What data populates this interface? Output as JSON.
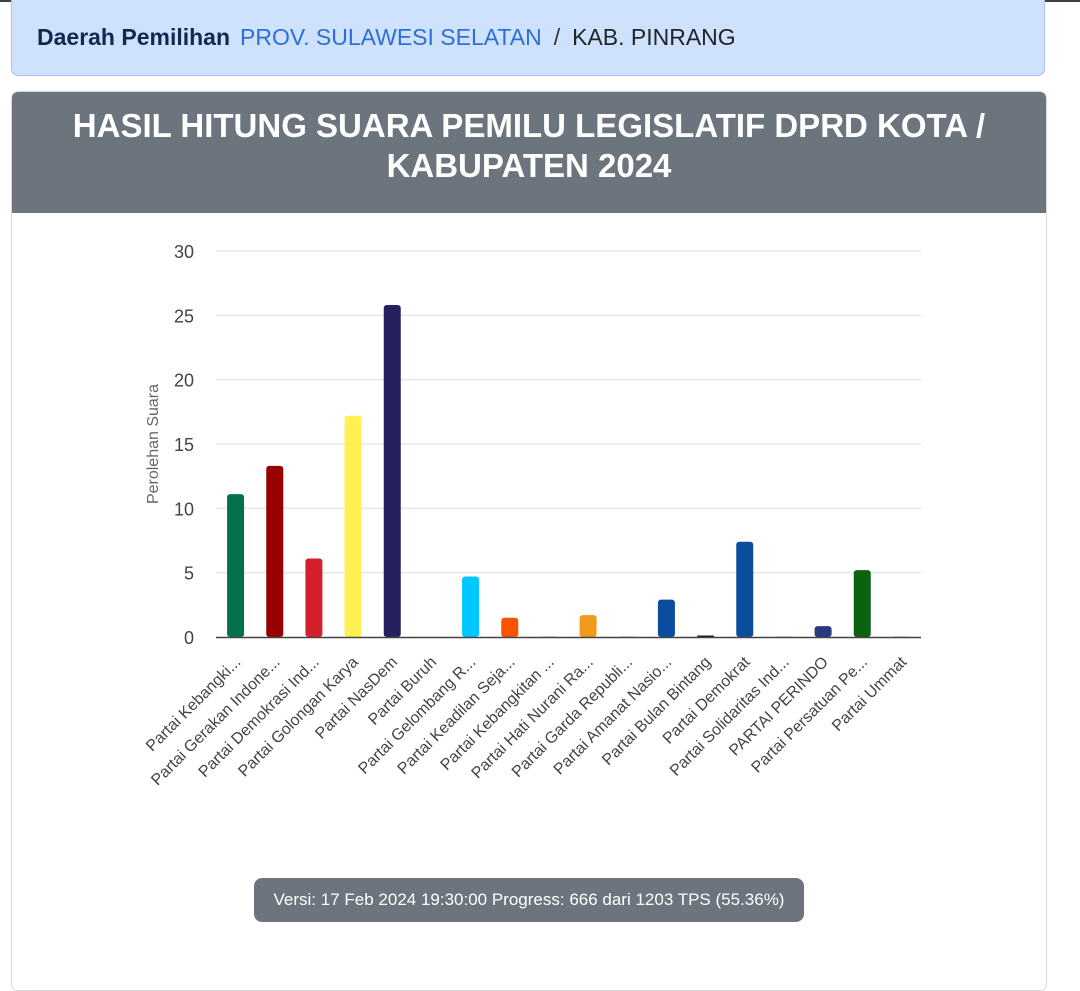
{
  "breadcrumb": {
    "label": "Daerah Pemilihan",
    "province": "PROV. SULAWESI SELATAN",
    "separator": "/",
    "current": "KAB. PINRANG"
  },
  "card": {
    "title_line1": "HASIL HITUNG SUARA PEMILU LEGISLATIF DPRD KOTA /",
    "title_line2": "KABUPATEN 2024"
  },
  "status": {
    "version_text": "Versi: 17 Feb 2024 19:30:00 Progress: 666 dari 1203 TPS (55.36%)"
  },
  "chart_data": {
    "type": "bar",
    "title": "HASIL HITUNG SUARA PEMILU LEGISLATIF DPRD KOTA / KABUPATEN 2024",
    "xlabel": "",
    "ylabel": "Perolehan Suara",
    "ylim": [
      0,
      30
    ],
    "yticks": [
      0,
      5,
      10,
      15,
      20,
      25,
      30
    ],
    "grid": true,
    "legend": "none",
    "categories": [
      "Partai Kebangki...",
      "Partai Gerakan Indone...",
      "Partai Demokrasi Ind...",
      "Partai Golongan Karya",
      "Partai NasDem",
      "Partai Buruh",
      "Partai Gelombang R...",
      "Partai Keadilan Seja...",
      "Partai Kebangkitan ...",
      "Partai Hati Nurani Ra...",
      "Partai Garda Republi...",
      "Partai Amanat Nasio...",
      "Partai Bulan Bintang",
      "Partai Demokrat",
      "Partai Solidaritas Ind...",
      "PARTAI PERINDO",
      "Partai Persatuan Pe...",
      "Partai Ummat"
    ],
    "values": [
      11.1,
      13.3,
      6.1,
      17.2,
      25.8,
      0,
      4.7,
      1.5,
      0,
      1.7,
      0,
      2.9,
      0.1,
      7.4,
      0,
      0.85,
      5.2,
      0
    ],
    "colors": [
      "#04714b",
      "#990000",
      "#d4202a",
      "#fff154",
      "#25215e",
      "#e8e8e8",
      "#00c7ff",
      "#fe5200",
      "#0b7a3c",
      "#f09a1a",
      "#7a1e22",
      "#0a4d9c",
      "#1a1a1a",
      "#0a4d9c",
      "#e6007e",
      "#273b82",
      "#0b6210",
      "#2c2c2c"
    ]
  }
}
